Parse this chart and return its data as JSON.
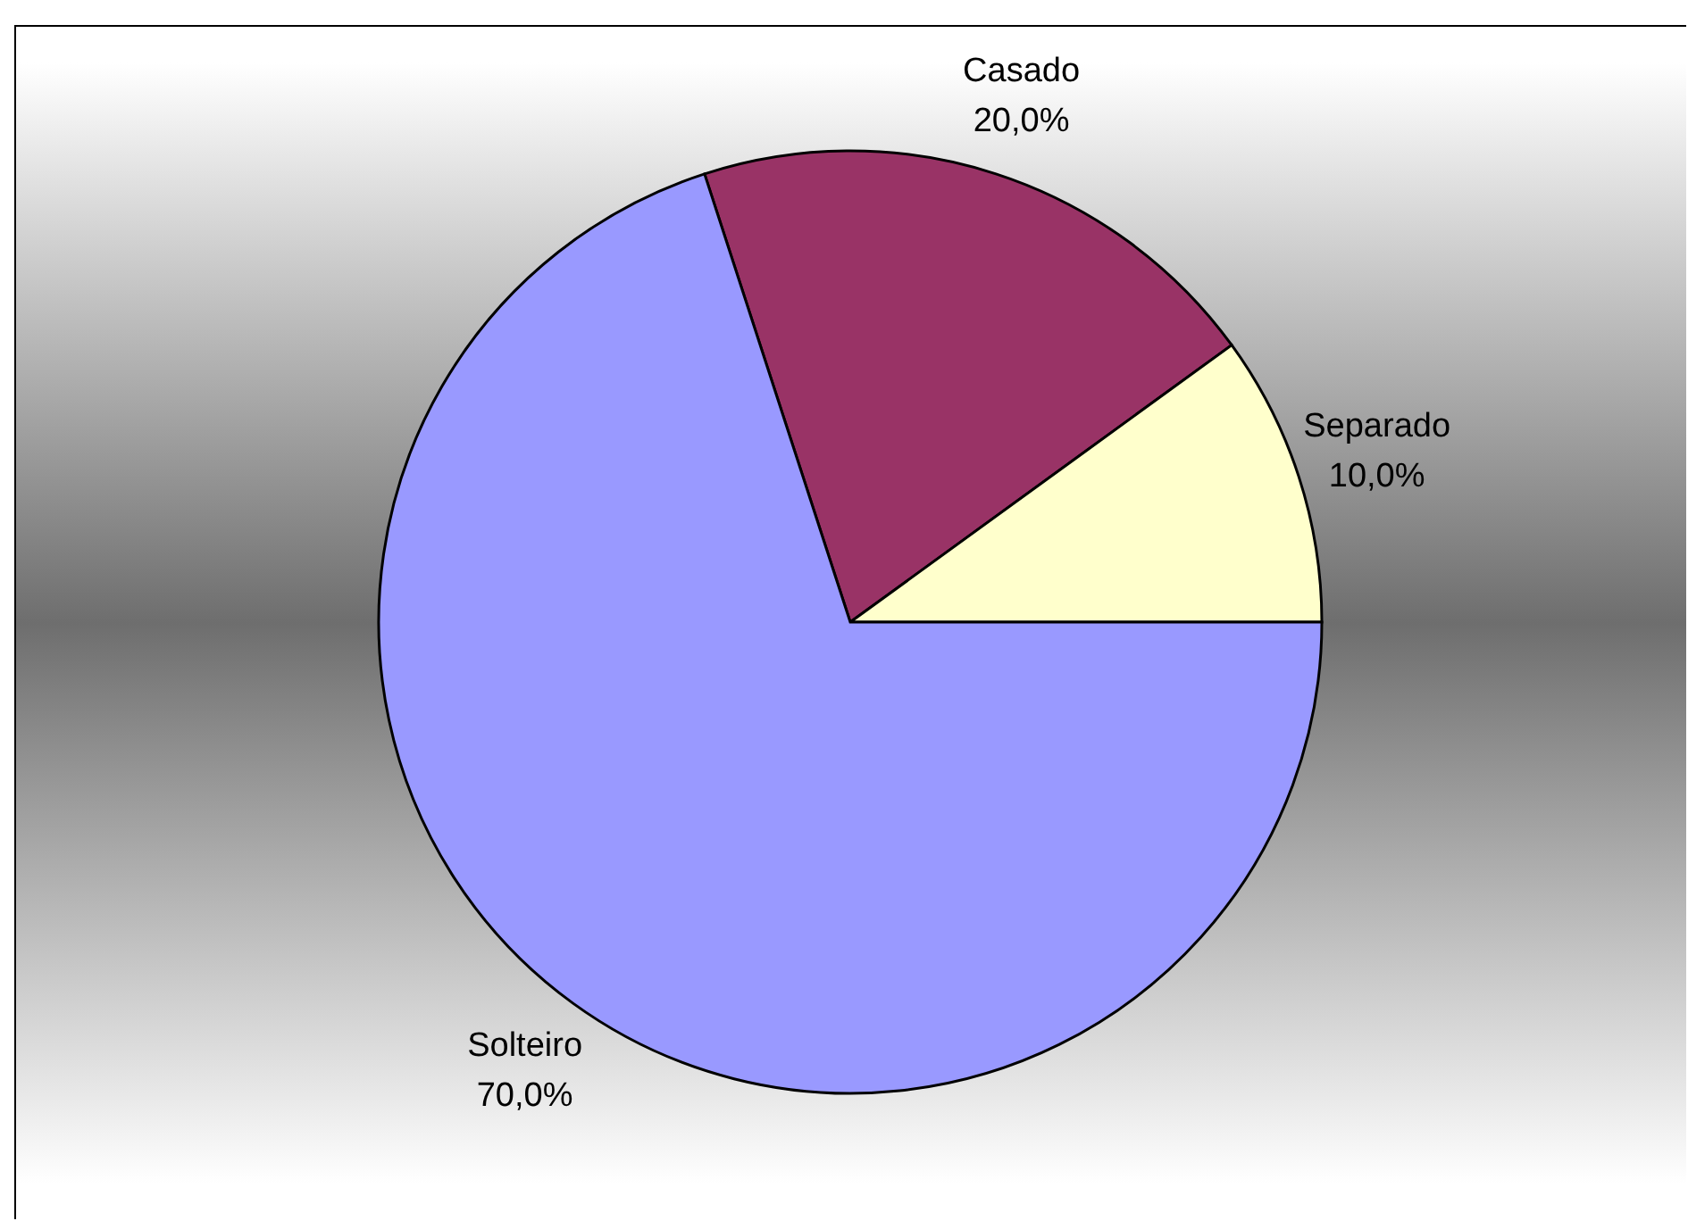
{
  "chart_data": {
    "type": "pie",
    "categories": [
      "Casado",
      "Separado",
      "Solteiro"
    ],
    "values": [
      20,
      10,
      70
    ],
    "colors": [
      "#993366",
      "#ffffcc",
      "#9999ff"
    ],
    "value_labels": [
      "20,0%",
      "10,0%",
      "70,0%"
    ]
  }
}
